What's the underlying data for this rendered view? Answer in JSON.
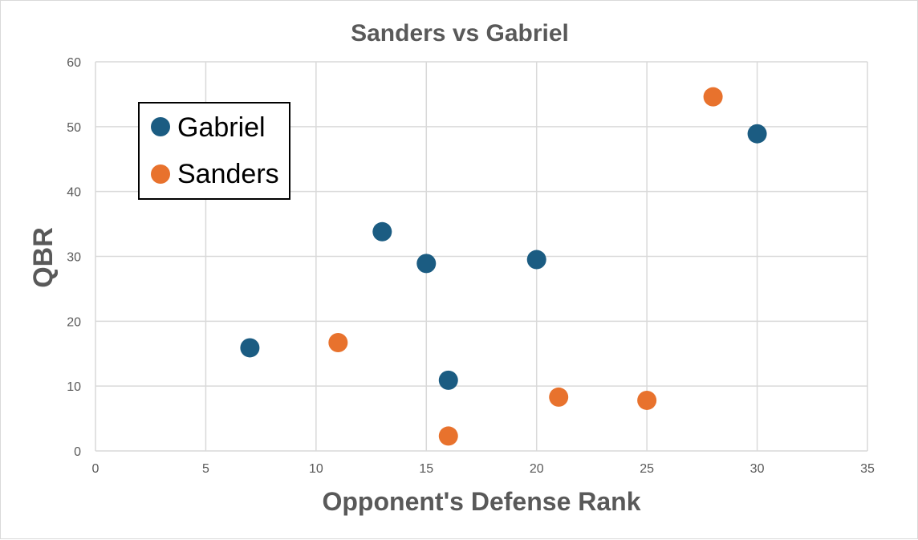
{
  "colors": {
    "gabriel": "#1b5c82",
    "sanders": "#e8722d",
    "grid": "#d9d9d9",
    "text": "#595959",
    "legend_border": "#000000"
  },
  "chart_data": {
    "type": "scatter",
    "title": "Sanders vs Gabriel",
    "xlabel": "Opponent's Defense Rank",
    "ylabel": "QBR",
    "xlim": [
      0,
      35
    ],
    "ylim": [
      0,
      60
    ],
    "xticks": [
      0,
      5,
      10,
      15,
      20,
      25,
      30,
      35
    ],
    "yticks": [
      0,
      10,
      20,
      30,
      40,
      50,
      60
    ],
    "grid": true,
    "legend_position": "top-left",
    "series": [
      {
        "name": "Gabriel",
        "color": "#1b5c82",
        "points": [
          {
            "x": 7,
            "y": 15.9
          },
          {
            "x": 13,
            "y": 33.8
          },
          {
            "x": 15,
            "y": 28.9
          },
          {
            "x": 16,
            "y": 10.9
          },
          {
            "x": 20,
            "y": 29.5
          },
          {
            "x": 30,
            "y": 48.9
          }
        ]
      },
      {
        "name": "Sanders",
        "color": "#e8722d",
        "points": [
          {
            "x": 11,
            "y": 16.7
          },
          {
            "x": 16,
            "y": 2.3
          },
          {
            "x": 21,
            "y": 8.3
          },
          {
            "x": 25,
            "y": 7.8
          },
          {
            "x": 28,
            "y": 54.6
          }
        ]
      }
    ]
  }
}
